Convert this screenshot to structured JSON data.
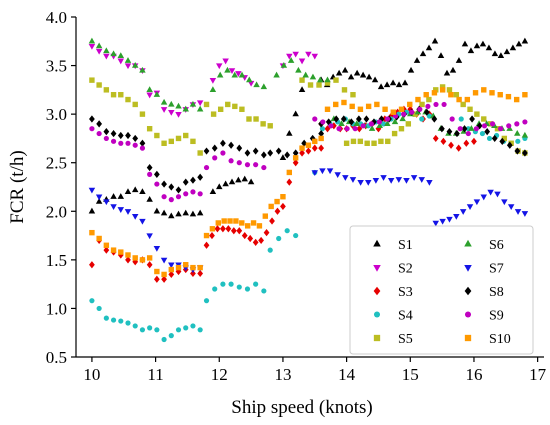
{
  "chart_data": {
    "type": "scatter",
    "xlabel": "Ship speed (knots)",
    "ylabel": "FCR (t/h)",
    "xlim": [
      9.75,
      17.1
    ],
    "ylim": [
      0.5,
      4.0
    ],
    "x_ticks": [
      "10",
      "11",
      "12",
      "13",
      "14",
      "15",
      "16",
      "17"
    ],
    "y_ticks": [
      "0.5",
      "1.0",
      "1.5",
      "2.0",
      "2.5",
      "3.0",
      "3.5",
      "4.0"
    ],
    "grid": false,
    "legend_position": "lower-right",
    "series": [
      {
        "name": "S1",
        "color": "#000000",
        "marker": "triangle-up",
        "segments": [
          {
            "x0": 10.0,
            "x1": 11.7,
            "y": [
              2.0,
              2.1,
              2.12,
              2.15,
              2.15,
              2.2,
              2.22,
              2.2,
              2.12,
              2.0,
              1.98,
              1.95,
              1.97,
              1.98,
              1.97,
              1.98
            ]
          },
          {
            "x0": 11.9,
            "x1": 12.5,
            "y": [
              2.2,
              2.25,
              2.28,
              2.3,
              2.32,
              2.33,
              2.3
            ]
          },
          {
            "x0": 13.0,
            "x1": 13.3,
            "y": [
              2.55,
              2.8,
              3.0,
              3.25
            ]
          },
          {
            "x0": 13.6,
            "x1": 16.8,
            "y": [
              3.35,
              3.3,
              3.38,
              3.42,
              3.45,
              3.38,
              3.42,
              3.4,
              3.38,
              3.35,
              3.28,
              3.3,
              3.32,
              3.3,
              3.32,
              3.45,
              3.55,
              3.62,
              3.68,
              3.75,
              3.6,
              3.42,
              3.45,
              3.55,
              3.72,
              3.65,
              3.7,
              3.72,
              3.68,
              3.62,
              3.6,
              3.64,
              3.68,
              3.72,
              3.75
            ]
          }
        ]
      },
      {
        "name": "S2",
        "color": "#cc00cc",
        "marker": "triangle-down",
        "segments": [
          {
            "x0": 10.0,
            "x1": 11.7,
            "y": [
              3.7,
              3.65,
              3.6,
              3.6,
              3.55,
              3.5,
              3.5,
              3.45,
              3.2,
              3.22,
              3.05,
              3.02,
              3.0,
              3.05,
              3.1,
              3.12
            ]
          },
          {
            "x0": 11.9,
            "x1": 12.5,
            "y": [
              3.35,
              3.5,
              3.55,
              3.45,
              3.42,
              3.38,
              3.32
            ]
          },
          {
            "x0": 13.0,
            "x1": 13.5,
            "y": [
              3.5,
              3.6,
              3.62,
              3.55,
              3.62,
              3.6
            ]
          }
        ]
      },
      {
        "name": "S3",
        "color": "#e60000",
        "marker": "diamond",
        "segments": [
          {
            "x0": 10.0,
            "x1": 11.7,
            "y": [
              1.45,
              1.7,
              1.6,
              1.58,
              1.55,
              1.5,
              1.48,
              1.5,
              1.45,
              1.3,
              1.3,
              1.35,
              1.38,
              1.4,
              1.36,
              1.36
            ]
          },
          {
            "x0": 11.8,
            "x1": 13.0,
            "y": [
              1.65,
              1.75,
              1.82,
              1.82,
              1.82,
              1.8,
              1.8,
              1.75,
              1.72,
              1.68,
              1.7,
              1.78,
              1.9,
              2.0,
              2.05
            ]
          },
          {
            "x0": 13.1,
            "x1": 13.6,
            "y": [
              2.3,
              2.5,
              2.6,
              2.62,
              2.65,
              2.65
            ]
          },
          {
            "x0": 13.6,
            "x1": 15.3,
            "y": [
              2.9,
              2.85,
              2.88,
              2.85,
              2.85,
              2.88,
              2.85,
              2.88,
              2.9,
              2.85,
              2.95,
              2.98,
              3.02,
              3.05,
              3.05,
              3.0,
              2.95,
              3.0
            ]
          },
          {
            "x0": 15.4,
            "x1": 16.0,
            "y": [
              2.75,
              2.72,
              2.68,
              2.65,
              2.7,
              2.72
            ]
          }
        ]
      },
      {
        "name": "S4",
        "color": "#20c0c0",
        "marker": "circle",
        "segments": [
          {
            "x0": 10.0,
            "x1": 11.7,
            "y": [
              1.08,
              1.0,
              0.9,
              0.88,
              0.87,
              0.85,
              0.82,
              0.78,
              0.8,
              0.78,
              0.68,
              0.72,
              0.78,
              0.8,
              0.82,
              0.78
            ]
          },
          {
            "x0": 11.8,
            "x1": 12.7,
            "y": [
              1.08,
              1.2,
              1.25,
              1.25,
              1.22,
              1.2,
              1.25,
              1.18
            ]
          },
          {
            "x0": 12.8,
            "x1": 13.2,
            "y": [
              1.6,
              1.72,
              1.8,
              1.75
            ]
          },
          {
            "x0": 13.5,
            "x1": 15.3,
            "y": [
              2.4,
              2.85,
              2.9,
              2.92,
              2.95,
              2.9,
              2.9,
              2.88,
              2.92,
              2.9,
              2.95,
              3.0,
              3.02,
              3.0,
              2.95,
              2.98
            ]
          },
          {
            "x0": 15.8,
            "x1": 16.8,
            "y": [
              2.95,
              2.85,
              2.82,
              2.8,
              2.75,
              2.78,
              2.72,
              2.7,
              2.72,
              2.75
            ]
          }
        ]
      },
      {
        "name": "S5",
        "color": "#bcbd22",
        "marker": "square",
        "segments": [
          {
            "x0": 10.0,
            "x1": 11.7,
            "y": [
              3.35,
              3.3,
              3.25,
              3.2,
              3.2,
              3.15,
              3.1,
              3.0,
              2.85,
              2.78,
              2.7,
              2.72,
              2.75,
              2.78,
              2.72,
              2.6
            ]
          },
          {
            "x0": 11.8,
            "x1": 12.8,
            "y": [
              3.1,
              3.0,
              3.05,
              3.1,
              3.08,
              3.05,
              2.95,
              2.95,
              2.9,
              2.88
            ]
          },
          {
            "x0": 13.3,
            "x1": 14.1,
            "y": [
              3.35,
              3.3,
              3.3,
              3.32,
              3.35,
              3.25,
              3.2
            ]
          },
          {
            "x0": 14.0,
            "x1": 16.8,
            "y": [
              2.7,
              2.72,
              2.72,
              2.7,
              2.7,
              2.72,
              2.72,
              2.8,
              2.85,
              2.9,
              3.0,
              3.1,
              3.15,
              3.25,
              3.28,
              3.25,
              3.2,
              3.1,
              3.05,
              3.0,
              2.95,
              2.9,
              2.85,
              2.75,
              2.7,
              2.62,
              2.6
            ]
          }
        ]
      },
      {
        "name": "S6",
        "color": "#2ca02c",
        "marker": "triangle-up",
        "segments": [
          {
            "x0": 10.0,
            "x1": 11.7,
            "y": [
              3.75,
              3.7,
              3.65,
              3.62,
              3.6,
              3.55,
              3.5,
              3.45,
              3.25,
              3.2,
              3.12,
              3.1,
              3.08,
              3.05,
              3.1,
              3.05
            ]
          },
          {
            "x0": 11.9,
            "x1": 12.7,
            "y": [
              3.25,
              3.4,
              3.45,
              3.4,
              3.4,
              3.35,
              3.3,
              3.28
            ]
          },
          {
            "x0": 12.9,
            "x1": 13.7,
            "y": [
              3.4,
              3.5,
              3.55,
              3.45,
              3.4,
              3.38,
              3.35,
              3.35
            ]
          },
          {
            "x0": 13.8,
            "x1": 16.8,
            "y": [
              2.95,
              2.9,
              2.92,
              2.9,
              2.88,
              2.85,
              2.88,
              2.9,
              2.92,
              2.95,
              3.0,
              3.02,
              3.02,
              2.98,
              2.85,
              2.8,
              2.8,
              2.82,
              2.85,
              2.9,
              2.9,
              2.88,
              2.85,
              2.85,
              2.8,
              2.78
            ]
          }
        ]
      },
      {
        "name": "S7",
        "color": "#1414e6",
        "marker": "triangle-down",
        "segments": [
          {
            "x0": 10.0,
            "x1": 11.7,
            "y": [
              2.22,
              2.15,
              2.1,
              2.05,
              2.02,
              2.0,
              1.95,
              1.9,
              1.75,
              1.62,
              1.5,
              1.45,
              1.45,
              1.42,
              1.4,
              1.42
            ]
          },
          {
            "x0": 13.5,
            "x1": 15.3,
            "y": [
              2.4,
              2.42,
              2.42,
              2.38,
              2.35,
              2.33,
              2.3,
              2.3,
              2.32,
              2.35,
              2.32,
              2.33,
              2.32,
              2.35,
              2.33,
              2.3
            ]
          },
          {
            "x0": 15.4,
            "x1": 16.8,
            "y": [
              1.88,
              1.9,
              1.92,
              1.95,
              2.0,
              2.05,
              2.1,
              2.15,
              2.2,
              2.18,
              2.1,
              2.05,
              2.0,
              1.98
            ]
          }
        ]
      },
      {
        "name": "S8",
        "color": "#000000",
        "marker": "diamond",
        "segments": [
          {
            "x0": 10.0,
            "x1": 11.7,
            "y": [
              2.95,
              2.9,
              2.82,
              2.8,
              2.78,
              2.78,
              2.75,
              2.7,
              2.45,
              2.38,
              2.28,
              2.25,
              2.22,
              2.3,
              2.32,
              2.35
            ]
          },
          {
            "x0": 11.8,
            "x1": 12.7,
            "y": [
              2.62,
              2.65,
              2.7,
              2.68,
              2.65,
              2.6,
              2.62,
              2.58
            ]
          },
          {
            "x0": 12.8,
            "x1": 13.6,
            "y": [
              2.6,
              2.62,
              2.58,
              2.6,
              2.7,
              2.75,
              2.8
            ]
          },
          {
            "x0": 13.6,
            "x1": 16.8,
            "y": [
              2.9,
              2.92,
              2.95,
              2.95,
              2.92,
              2.95,
              2.95,
              2.92,
              2.95,
              2.95,
              2.97,
              3.0,
              3.02,
              3.05,
              3.02,
              2.95,
              2.85,
              2.82,
              2.8,
              2.85,
              2.95,
              2.88,
              2.82,
              2.75,
              2.72,
              2.68,
              2.62,
              2.6
            ]
          }
        ]
      },
      {
        "name": "S9",
        "color": "#c000c0",
        "marker": "circle",
        "segments": [
          {
            "x0": 10.0,
            "x1": 11.7,
            "y": [
              2.85,
              2.8,
              2.75,
              2.72,
              2.7,
              2.7,
              2.68,
              2.65,
              2.38,
              2.28,
              2.15,
              2.12,
              2.15,
              2.18,
              2.2,
              2.18
            ]
          },
          {
            "x0": 11.8,
            "x1": 12.7,
            "y": [
              2.45,
              2.55,
              2.6,
              2.52,
              2.5,
              2.48,
              2.48,
              2.45
            ]
          },
          {
            "x0": 13.5,
            "x1": 16.8,
            "y": [
              2.95,
              2.92,
              2.88,
              2.85,
              2.85,
              2.85,
              2.88,
              2.9,
              2.92,
              2.95,
              2.98,
              3.0,
              3.02,
              3.05,
              3.08,
              3.1,
              3.1,
              2.95,
              2.85,
              2.8,
              2.85,
              2.88,
              2.9,
              2.85,
              2.88,
              2.9,
              2.92
            ]
          }
        ]
      },
      {
        "name": "S10",
        "color": "#ff9900",
        "marker": "square",
        "segments": [
          {
            "x0": 10.0,
            "x1": 11.7,
            "y": [
              1.78,
              1.72,
              1.65,
              1.6,
              1.58,
              1.55,
              1.52,
              1.5,
              1.52,
              1.38,
              1.35,
              1.4,
              1.42,
              1.45,
              1.42,
              1.42
            ]
          },
          {
            "x0": 11.8,
            "x1": 13.0,
            "y": [
              1.75,
              1.82,
              1.88,
              1.9,
              1.9,
              1.9,
              1.88,
              1.85,
              1.88,
              1.85,
              1.95,
              2.05,
              2.1,
              2.15
            ]
          },
          {
            "x0": 13.1,
            "x1": 13.6,
            "y": [
              2.4,
              2.55,
              2.65,
              2.68,
              2.72,
              2.75
            ]
          },
          {
            "x0": 13.7,
            "x1": 16.8,
            "y": [
              3.05,
              3.1,
              3.12,
              3.08,
              3.05,
              3.08,
              3.1,
              3.05,
              3.02,
              3.05,
              3.1,
              3.15,
              3.2,
              3.22,
              3.25,
              3.2,
              3.15,
              3.15,
              3.22,
              3.25,
              3.22,
              3.2,
              3.18,
              3.15,
              3.2
            ]
          }
        ]
      }
    ]
  }
}
